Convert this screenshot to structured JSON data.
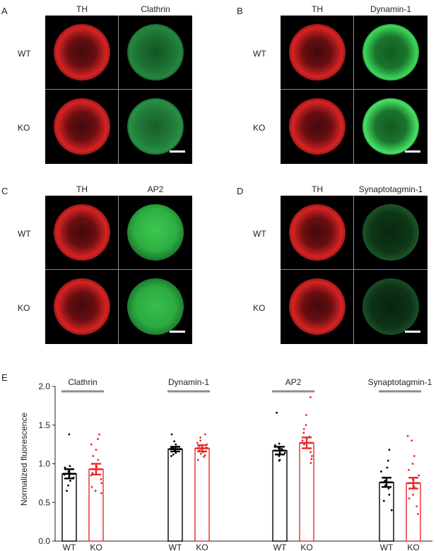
{
  "panels": [
    {
      "letter": "A",
      "channels": [
        "TH",
        "Clathrin"
      ],
      "rows": [
        "WT",
        "KO"
      ],
      "green_style": "diffuse"
    },
    {
      "letter": "B",
      "channels": [
        "TH",
        "Dynamin-1"
      ],
      "rows": [
        "WT",
        "KO"
      ],
      "green_style": "ring"
    },
    {
      "letter": "C",
      "channels": [
        "TH",
        "AP2"
      ],
      "rows": [
        "WT",
        "KO"
      ],
      "green_style": "bright"
    },
    {
      "letter": "D",
      "channels": [
        "TH",
        "Synaptotagmin-1"
      ],
      "rows": [
        "WT",
        "KO"
      ],
      "green_style": "dim"
    }
  ],
  "colors": {
    "red": "#d42222",
    "green": "#2fb84a",
    "wt": "#000000",
    "ko": "#e8292a",
    "group_bar": "#8c8c8c"
  },
  "chart_data": {
    "type": "bar",
    "panel_letter": "E",
    "ylabel": "Normalized fluorescence",
    "ylim": [
      0.0,
      2.0
    ],
    "yticks": [
      "0.0",
      "0.5",
      "1.0",
      "1.5",
      "2.0"
    ],
    "groups": [
      "Clathrin",
      "Dynamin-1",
      "AP2",
      "Synaptotagmin-1"
    ],
    "conditions": [
      "WT",
      "KO"
    ],
    "series": [
      {
        "name": "WT",
        "values": [
          0.87,
          1.19,
          1.17,
          0.76
        ],
        "sem": [
          0.06,
          0.03,
          0.05,
          0.06
        ]
      },
      {
        "name": "KO",
        "values": [
          0.93,
          1.2,
          1.27,
          0.75
        ],
        "sem": [
          0.07,
          0.04,
          0.07,
          0.07
        ]
      }
    ],
    "points": {
      "WT": [
        [
          1.38,
          0.97,
          0.95,
          0.93,
          0.9,
          0.88,
          0.86,
          0.82,
          0.78,
          0.72,
          0.65
        ],
        [
          1.38,
          1.29,
          1.25,
          1.22,
          1.21,
          1.2,
          1.19,
          1.18,
          1.16,
          1.14,
          1.12,
          1.1
        ],
        [
          1.66,
          1.26,
          1.24,
          1.22,
          1.2,
          1.19,
          1.17,
          1.14,
          1.12,
          1.1,
          1.05,
          1.04
        ],
        [
          1.18,
          1.04,
          0.95,
          0.9,
          0.82,
          0.78,
          0.76,
          0.72,
          0.68,
          0.6,
          0.52,
          0.4
        ]
      ],
      "KO": [
        [
          1.38,
          1.32,
          1.25,
          1.18,
          1.1,
          1.05,
          1.0,
          0.96,
          0.92,
          0.88,
          0.85,
          0.8,
          0.75,
          0.7,
          0.65,
          0.62
        ],
        [
          1.38,
          1.34,
          1.3,
          1.27,
          1.25,
          1.23,
          1.21,
          1.19,
          1.17,
          1.15,
          1.13,
          1.11,
          1.09,
          1.05
        ],
        [
          1.86,
          1.63,
          1.5,
          1.45,
          1.4,
          1.35,
          1.3,
          1.25,
          1.2,
          1.15,
          1.1,
          1.06,
          1.01
        ],
        [
          1.36,
          1.3,
          1.1,
          1.0,
          0.92,
          0.85,
          0.8,
          0.75,
          0.7,
          0.6,
          0.55,
          0.45,
          0.35
        ]
      ]
    }
  }
}
